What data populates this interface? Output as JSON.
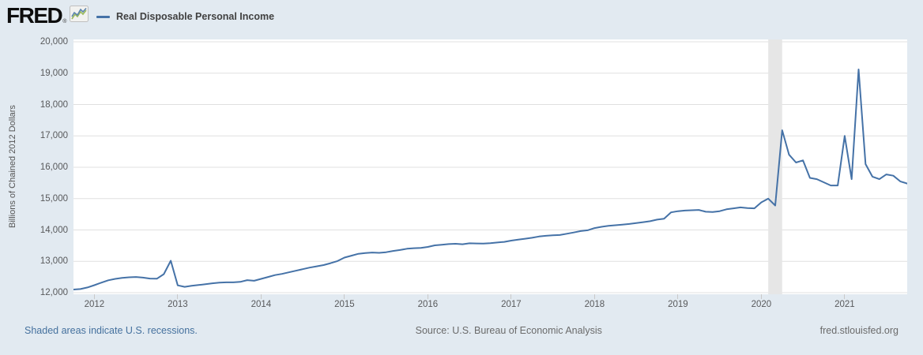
{
  "header": {
    "logo_text": "FRED",
    "logo_registered": "®",
    "legend": {
      "label": "Real Disposable Personal Income",
      "color": "#4572a7"
    }
  },
  "chart_data": {
    "type": "line",
    "title": "Real Disposable Personal Income",
    "ylabel": "Billions of Chained 2012 Dollars",
    "ylim": [
      12000,
      20000
    ],
    "yticks": [
      {
        "v": 12000,
        "label": "12,000"
      },
      {
        "v": 13000,
        "label": "13,000"
      },
      {
        "v": 14000,
        "label": "14,000"
      },
      {
        "v": 15000,
        "label": "15,000"
      },
      {
        "v": 16000,
        "label": "16,000"
      },
      {
        "v": 17000,
        "label": "17,000"
      },
      {
        "v": 18000,
        "label": "18,000"
      },
      {
        "v": 19000,
        "label": "19,000"
      },
      {
        "v": 20000,
        "label": "20,000"
      }
    ],
    "x_start": "2011-10",
    "x_end": "2021-10",
    "x_tick_years": [
      "2012",
      "2013",
      "2014",
      "2015",
      "2016",
      "2017",
      "2018",
      "2019",
      "2020",
      "2021"
    ],
    "grid": true,
    "legend_position": "top-left",
    "line_color": "#4572a7",
    "grid_color": "#e0e0e0",
    "recession_band_color": "#e6e6e6",
    "recession_bands": [
      {
        "start": "2020-02",
        "end": "2020-04"
      }
    ],
    "series": [
      {
        "name": "Real Disposable Personal Income",
        "frequency": "monthly",
        "values": [
          12100,
          12115,
          12165,
          12240,
          12320,
          12395,
          12440,
          12470,
          12490,
          12500,
          12480,
          12450,
          12445,
          12590,
          13020,
          12235,
          12185,
          12220,
          12245,
          12270,
          12300,
          12320,
          12330,
          12330,
          12345,
          12400,
          12380,
          12440,
          12500,
          12560,
          12600,
          12650,
          12700,
          12750,
          12800,
          12840,
          12880,
          12940,
          13010,
          13120,
          13180,
          13240,
          13265,
          13280,
          13270,
          13290,
          13330,
          13360,
          13400,
          13420,
          13430,
          13460,
          13510,
          13530,
          13550,
          13560,
          13545,
          13575,
          13570,
          13565,
          13580,
          13600,
          13620,
          13660,
          13690,
          13720,
          13750,
          13790,
          13815,
          13830,
          13840,
          13880,
          13920,
          13965,
          13990,
          14060,
          14100,
          14130,
          14150,
          14170,
          14190,
          14220,
          14250,
          14280,
          14330,
          14360,
          14560,
          14600,
          14620,
          14630,
          14640,
          14580,
          14570,
          14600,
          14660,
          14690,
          14720,
          14700,
          14690,
          14880,
          15000,
          14780,
          17180,
          16400,
          16150,
          16220,
          15660,
          15620,
          15520,
          15420,
          15420,
          17000,
          15620,
          19120,
          16100,
          15700,
          15620,
          15770,
          15730,
          15550,
          15480
        ]
      }
    ]
  },
  "footer": {
    "recession_note": "Shaded areas indicate U.S. recessions.",
    "source": "Source: U.S. Bureau of Economic Analysis",
    "site": "fred.stlouisfed.org"
  }
}
